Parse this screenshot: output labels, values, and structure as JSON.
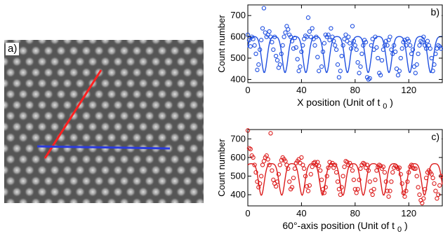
{
  "figure": {
    "panel_a": {
      "label": "a)",
      "line_colors": {
        "red": "#ff2020",
        "blue": "#2b3bdc"
      }
    }
  },
  "chart_data": [
    {
      "type": "scatter",
      "panel_label": "b)",
      "xlabel": "X position (Unit of t",
      "xlabel_sub": "0",
      "xlabel_close": ")",
      "ylabel": "Count number",
      "xlim": [
        0,
        145
      ],
      "ylim": [
        385,
        750
      ],
      "xticks": [
        0,
        40,
        80,
        120
      ],
      "yticks": [
        400,
        500,
        600,
        700
      ],
      "color": "#1f4fe0",
      "fit_period": 15.5,
      "fit_phase": 4.5,
      "points": [
        [
          0,
          610
        ],
        [
          1,
          585
        ],
        [
          2,
          555
        ],
        [
          3,
          600
        ],
        [
          4,
          590
        ],
        [
          5,
          560
        ],
        [
          6,
          520
        ],
        [
          7,
          445
        ],
        [
          8,
          470
        ],
        [
          9,
          540
        ],
        [
          10,
          585
        ],
        [
          11,
          640
        ],
        [
          12,
          735
        ],
        [
          13,
          620
        ],
        [
          14,
          600
        ],
        [
          15,
          610
        ],
        [
          16,
          625
        ],
        [
          17,
          600
        ],
        [
          18,
          575
        ],
        [
          19,
          540
        ],
        [
          20,
          600
        ],
        [
          21,
          510
        ],
        [
          22,
          490
        ],
        [
          23,
          455
        ],
        [
          24,
          470
        ],
        [
          25,
          520
        ],
        [
          26,
          560
        ],
        [
          27,
          600
        ],
        [
          28,
          620
        ],
        [
          29,
          650
        ],
        [
          30,
          635
        ],
        [
          31,
          610
        ],
        [
          32,
          600
        ],
        [
          33,
          580
        ],
        [
          34,
          545
        ],
        [
          35,
          595
        ],
        [
          36,
          550
        ],
        [
          37,
          495
        ],
        [
          38,
          440
        ],
        [
          39,
          460
        ],
        [
          40,
          530
        ],
        [
          41,
          560
        ],
        [
          42,
          590
        ],
        [
          43,
          605
        ],
        [
          44,
          600
        ],
        [
          45,
          690
        ],
        [
          46,
          625
        ],
        [
          47,
          600
        ],
        [
          48,
          640
        ],
        [
          49,
          590
        ],
        [
          50,
          560
        ],
        [
          51,
          600
        ],
        [
          52,
          505
        ],
        [
          53,
          440
        ],
        [
          54,
          380
        ],
        [
          55,
          460
        ],
        [
          56,
          530
        ],
        [
          57,
          570
        ],
        [
          58,
          610
        ],
        [
          59,
          600
        ],
        [
          60,
          610
        ],
        [
          61,
          585
        ],
        [
          62,
          640
        ],
        [
          63,
          600
        ],
        [
          64,
          580
        ],
        [
          65,
          560
        ],
        [
          66,
          540
        ],
        [
          67,
          470
        ],
        [
          68,
          410
        ],
        [
          69,
          440
        ],
        [
          70,
          510
        ],
        [
          71,
          560
        ],
        [
          72,
          590
        ],
        [
          73,
          610
        ],
        [
          74,
          580
        ],
        [
          75,
          600
        ],
        [
          76,
          570
        ],
        [
          77,
          545
        ],
        [
          78,
          650
        ],
        [
          79,
          580
        ],
        [
          80,
          560
        ],
        [
          81,
          540
        ],
        [
          82,
          480
        ],
        [
          83,
          430
        ],
        [
          84,
          460
        ],
        [
          85,
          520
        ],
        [
          86,
          560
        ],
        [
          87,
          585
        ],
        [
          88,
          575
        ],
        [
          89,
          410
        ],
        [
          90,
          400
        ],
        [
          91,
          405
        ],
        [
          92,
          560
        ],
        [
          93,
          590
        ],
        [
          94,
          540
        ],
        [
          95,
          600
        ],
        [
          96,
          550
        ],
        [
          97,
          500
        ],
        [
          98,
          430
        ],
        [
          99,
          420
        ],
        [
          100,
          490
        ],
        [
          101,
          540
        ],
        [
          102,
          560
        ],
        [
          103,
          580
        ],
        [
          104,
          560
        ],
        [
          105,
          585
        ],
        [
          106,
          600
        ],
        [
          107,
          540
        ],
        [
          108,
          520
        ],
        [
          109,
          560
        ],
        [
          110,
          530
        ],
        [
          111,
          450
        ],
        [
          112,
          420
        ],
        [
          113,
          440
        ],
        [
          114,
          500
        ],
        [
          115,
          545
        ],
        [
          116,
          575
        ],
        [
          117,
          585
        ],
        [
          118,
          560
        ],
        [
          119,
          590
        ],
        [
          120,
          580
        ],
        [
          121,
          560
        ],
        [
          122,
          520
        ],
        [
          123,
          540
        ],
        [
          124,
          460
        ],
        [
          125,
          430
        ],
        [
          126,
          470
        ],
        [
          127,
          520
        ],
        [
          128,
          560
        ],
        [
          129,
          580
        ],
        [
          130,
          575
        ],
        [
          131,
          600
        ],
        [
          132,
          560
        ],
        [
          133,
          545
        ],
        [
          134,
          580
        ],
        [
          135,
          560
        ],
        [
          136,
          545
        ],
        [
          137,
          500
        ],
        [
          138,
          440
        ],
        [
          139,
          470
        ],
        [
          140,
          520
        ],
        [
          141,
          545
        ],
        [
          142,
          560
        ],
        [
          143,
          555
        ],
        [
          144,
          545
        ]
      ]
    },
    {
      "type": "scatter",
      "panel_label": "c)",
      "xlabel": "60°-axis position (Unit of t",
      "xlabel_sub": "0",
      "xlabel_close": ")",
      "ylabel": "Count number",
      "xlim": [
        0,
        145
      ],
      "ylim": [
        340,
        750
      ],
      "xticks": [
        0,
        40,
        80,
        120
      ],
      "yticks": [
        400,
        500,
        600,
        700
      ],
      "color": "#dc1c1c",
      "fit_period": 15.2,
      "fit_phase": 2.5,
      "points": [
        [
          0,
          745
        ],
        [
          1,
          650
        ],
        [
          2,
          645
        ],
        [
          3,
          610
        ],
        [
          4,
          600
        ],
        [
          5,
          560
        ],
        [
          6,
          520
        ],
        [
          7,
          470
        ],
        [
          8,
          440
        ],
        [
          9,
          460
        ],
        [
          10,
          500
        ],
        [
          11,
          560
        ],
        [
          12,
          580
        ],
        [
          13,
          600
        ],
        [
          14,
          610
        ],
        [
          15,
          590
        ],
        [
          16,
          560
        ],
        [
          17,
          730
        ],
        [
          18,
          530
        ],
        [
          19,
          480
        ],
        [
          20,
          460
        ],
        [
          21,
          445
        ],
        [
          22,
          470
        ],
        [
          23,
          510
        ],
        [
          24,
          560
        ],
        [
          25,
          585
        ],
        [
          26,
          600
        ],
        [
          27,
          590
        ],
        [
          28,
          580
        ],
        [
          29,
          560
        ],
        [
          30,
          540
        ],
        [
          31,
          470
        ],
        [
          32,
          430
        ],
        [
          33,
          440
        ],
        [
          34,
          490
        ],
        [
          35,
          540
        ],
        [
          36,
          570
        ],
        [
          37,
          580
        ],
        [
          38,
          590
        ],
        [
          39,
          570
        ],
        [
          40,
          600
        ],
        [
          41,
          560
        ],
        [
          42,
          540
        ],
        [
          43,
          500
        ],
        [
          44,
          445
        ],
        [
          45,
          420
        ],
        [
          46,
          450
        ],
        [
          47,
          510
        ],
        [
          48,
          550
        ],
        [
          49,
          570
        ],
        [
          50,
          575
        ],
        [
          51,
          560
        ],
        [
          52,
          575
        ],
        [
          53,
          555
        ],
        [
          54,
          530
        ],
        [
          55,
          480
        ],
        [
          56,
          430
        ],
        [
          57,
          410
        ],
        [
          58,
          440
        ],
        [
          59,
          500
        ],
        [
          60,
          545
        ],
        [
          61,
          575
        ],
        [
          62,
          560
        ],
        [
          63,
          570
        ],
        [
          64,
          545
        ],
        [
          65,
          560
        ],
        [
          66,
          520
        ],
        [
          67,
          470
        ],
        [
          68,
          430
        ],
        [
          69,
          400
        ],
        [
          70,
          440
        ],
        [
          71,
          500
        ],
        [
          72,
          550
        ],
        [
          73,
          580
        ],
        [
          74,
          575
        ],
        [
          75,
          560
        ],
        [
          76,
          570
        ],
        [
          77,
          555
        ],
        [
          78,
          530
        ],
        [
          79,
          480
        ],
        [
          80,
          430
        ],
        [
          81,
          410
        ],
        [
          82,
          430
        ],
        [
          83,
          480
        ],
        [
          84,
          540
        ],
        [
          85,
          560
        ],
        [
          86,
          570
        ],
        [
          87,
          565
        ],
        [
          88,
          545
        ],
        [
          89,
          560
        ],
        [
          90,
          530
        ],
        [
          91,
          470
        ],
        [
          92,
          420
        ],
        [
          93,
          400
        ],
        [
          94,
          430
        ],
        [
          95,
          480
        ],
        [
          96,
          530
        ],
        [
          97,
          550
        ],
        [
          98,
          560
        ],
        [
          99,
          555
        ],
        [
          100,
          540
        ],
        [
          101,
          550
        ],
        [
          102,
          520
        ],
        [
          103,
          470
        ],
        [
          104,
          420
        ],
        [
          105,
          390
        ],
        [
          106,
          420
        ],
        [
          107,
          470
        ],
        [
          108,
          520
        ],
        [
          109,
          545
        ],
        [
          110,
          555
        ],
        [
          111,
          550
        ],
        [
          112,
          540
        ],
        [
          113,
          545
        ],
        [
          114,
          510
        ],
        [
          115,
          460
        ],
        [
          116,
          410
        ],
        [
          117,
          390
        ],
        [
          118,
          420
        ],
        [
          119,
          470
        ],
        [
          120,
          520
        ],
        [
          121,
          550
        ],
        [
          122,
          560
        ],
        [
          123,
          545
        ],
        [
          124,
          540
        ],
        [
          125,
          540
        ],
        [
          126,
          500
        ],
        [
          127,
          440
        ],
        [
          128,
          400
        ],
        [
          129,
          370
        ],
        [
          130,
          355
        ],
        [
          131,
          380
        ],
        [
          132,
          430
        ],
        [
          133,
          490
        ],
        [
          134,
          520
        ],
        [
          135,
          530
        ],
        [
          136,
          520
        ],
        [
          137,
          510
        ],
        [
          138,
          490
        ],
        [
          139,
          460
        ],
        [
          140,
          420
        ],
        [
          141,
          380
        ],
        [
          142,
          400
        ],
        [
          143,
          450
        ],
        [
          144,
          500
        ]
      ]
    }
  ]
}
